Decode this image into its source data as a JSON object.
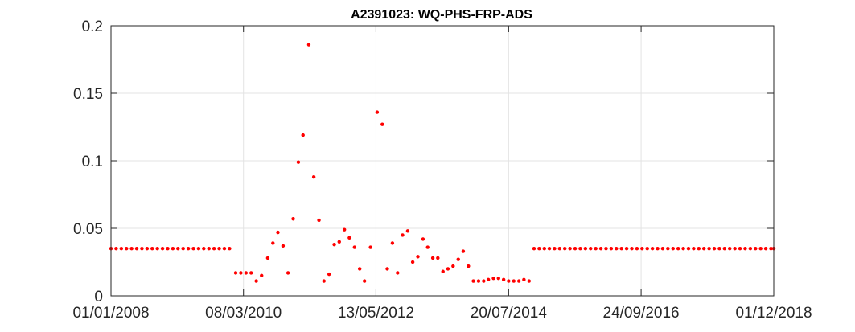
{
  "chart_data": {
    "type": "scatter",
    "title": "A2391023: WQ-PHS-FRP-ADS",
    "xlabel": "",
    "ylabel": "",
    "xlim": [
      "2008-01-01",
      "2018-12-01"
    ],
    "ylim": [
      0,
      0.2
    ],
    "x_ticks": [
      "2008-01-01",
      "2010-03-08",
      "2012-05-13",
      "2014-07-20",
      "2016-09-24",
      "2018-12-01"
    ],
    "x_tick_labels": [
      "01/01/2008",
      "08/03/2010",
      "13/05/2012",
      "20/07/2014",
      "24/09/2016",
      "01/12/2018"
    ],
    "y_ticks": [
      0,
      0.05,
      0.1,
      0.15,
      0.2
    ],
    "y_tick_labels": [
      "0",
      "0.05",
      "0.1",
      "0.15",
      "0.2"
    ],
    "grid": true,
    "marker_color": "#ff0000",
    "series": [
      {
        "points": [
          [
            "2008-01-01",
            0.035
          ],
          [
            "2008-02-01",
            0.035
          ],
          [
            "2008-03-03",
            0.035
          ],
          [
            "2008-04-03",
            0.035
          ],
          [
            "2008-05-04",
            0.035
          ],
          [
            "2008-06-04",
            0.035
          ],
          [
            "2008-07-05",
            0.035
          ],
          [
            "2008-08-05",
            0.035
          ],
          [
            "2008-09-05",
            0.035
          ],
          [
            "2008-10-06",
            0.035
          ],
          [
            "2008-11-06",
            0.035
          ],
          [
            "2008-12-07",
            0.035
          ],
          [
            "2009-01-07",
            0.035
          ],
          [
            "2009-02-07",
            0.035
          ],
          [
            "2009-03-10",
            0.035
          ],
          [
            "2009-04-10",
            0.035
          ],
          [
            "2009-05-11",
            0.035
          ],
          [
            "2009-06-11",
            0.035
          ],
          [
            "2009-07-12",
            0.035
          ],
          [
            "2009-08-12",
            0.035
          ],
          [
            "2009-09-12",
            0.035
          ],
          [
            "2009-10-13",
            0.035
          ],
          [
            "2009-11-13",
            0.035
          ],
          [
            "2009-12-14",
            0.035
          ],
          [
            "2010-01-20",
            0.017
          ],
          [
            "2010-02-20",
            0.017
          ],
          [
            "2010-03-23",
            0.017
          ],
          [
            "2010-04-23",
            0.017
          ],
          [
            "2010-05-24",
            0.011
          ],
          [
            "2010-06-25",
            0.015
          ],
          [
            "2010-08-01",
            0.028
          ],
          [
            "2010-09-01",
            0.039
          ],
          [
            "2010-10-01",
            0.047
          ],
          [
            "2010-11-01",
            0.037
          ],
          [
            "2010-12-01",
            0.017
          ],
          [
            "2011-01-01",
            0.057
          ],
          [
            "2011-02-01",
            0.099
          ],
          [
            "2011-03-01",
            0.119
          ],
          [
            "2011-04-05",
            0.186
          ],
          [
            "2011-05-05",
            0.088
          ],
          [
            "2011-06-05",
            0.056
          ],
          [
            "2011-07-05",
            0.011
          ],
          [
            "2011-08-05",
            0.016
          ],
          [
            "2011-09-05",
            0.038
          ],
          [
            "2011-10-05",
            0.04
          ],
          [
            "2011-11-05",
            0.049
          ],
          [
            "2011-12-05",
            0.043
          ],
          [
            "2012-01-05",
            0.036
          ],
          [
            "2012-02-05",
            0.02
          ],
          [
            "2012-03-05",
            0.011
          ],
          [
            "2012-04-10",
            0.036
          ],
          [
            "2012-05-20",
            0.136
          ],
          [
            "2012-06-20",
            0.127
          ],
          [
            "2012-07-20",
            0.02
          ],
          [
            "2012-08-20",
            0.039
          ],
          [
            "2012-09-20",
            0.017
          ],
          [
            "2012-10-20",
            0.045
          ],
          [
            "2012-11-20",
            0.048
          ],
          [
            "2012-12-20",
            0.025
          ],
          [
            "2013-01-20",
            0.029
          ],
          [
            "2013-02-20",
            0.042
          ],
          [
            "2013-03-20",
            0.036
          ],
          [
            "2013-04-20",
            0.028
          ],
          [
            "2013-05-20",
            0.028
          ],
          [
            "2013-06-20",
            0.018
          ],
          [
            "2013-07-20",
            0.02
          ],
          [
            "2013-08-20",
            0.022
          ],
          [
            "2013-09-20",
            0.027
          ],
          [
            "2013-10-20",
            0.033
          ],
          [
            "2013-11-20",
            0.022
          ],
          [
            "2013-12-20",
            0.011
          ],
          [
            "2014-01-20",
            0.011
          ],
          [
            "2014-02-20",
            0.011
          ],
          [
            "2014-03-20",
            0.012
          ],
          [
            "2014-04-20",
            0.013
          ],
          [
            "2014-05-20",
            0.013
          ],
          [
            "2014-06-20",
            0.012
          ],
          [
            "2014-07-20",
            0.011
          ],
          [
            "2014-08-20",
            0.011
          ],
          [
            "2014-09-20",
            0.011
          ],
          [
            "2014-10-20",
            0.012
          ],
          [
            "2014-11-20",
            0.011
          ],
          [
            "2014-12-20",
            0.035
          ],
          [
            "2015-01-20",
            0.035
          ],
          [
            "2015-02-20",
            0.035
          ],
          [
            "2015-03-22",
            0.035
          ],
          [
            "2015-04-22",
            0.035
          ],
          [
            "2015-05-23",
            0.035
          ],
          [
            "2015-06-23",
            0.035
          ],
          [
            "2015-07-24",
            0.035
          ],
          [
            "2015-08-24",
            0.035
          ],
          [
            "2015-09-24",
            0.035
          ],
          [
            "2015-10-25",
            0.035
          ],
          [
            "2015-11-25",
            0.035
          ],
          [
            "2015-12-26",
            0.035
          ],
          [
            "2016-01-26",
            0.035
          ],
          [
            "2016-02-26",
            0.035
          ],
          [
            "2016-03-28",
            0.035
          ],
          [
            "2016-04-28",
            0.035
          ],
          [
            "2016-05-29",
            0.035
          ],
          [
            "2016-06-29",
            0.035
          ],
          [
            "2016-07-30",
            0.035
          ],
          [
            "2016-08-30",
            0.035
          ],
          [
            "2016-09-30",
            0.035
          ],
          [
            "2016-10-31",
            0.035
          ],
          [
            "2016-12-01",
            0.035
          ],
          [
            "2017-01-01",
            0.035
          ],
          [
            "2017-02-01",
            0.035
          ],
          [
            "2017-03-04",
            0.035
          ],
          [
            "2017-04-04",
            0.035
          ],
          [
            "2017-05-05",
            0.035
          ],
          [
            "2017-06-05",
            0.035
          ],
          [
            "2017-07-06",
            0.035
          ],
          [
            "2017-08-06",
            0.035
          ],
          [
            "2017-09-06",
            0.035
          ],
          [
            "2017-10-07",
            0.035
          ],
          [
            "2017-11-07",
            0.035
          ],
          [
            "2017-12-08",
            0.035
          ],
          [
            "2018-01-08",
            0.035
          ],
          [
            "2018-02-08",
            0.035
          ],
          [
            "2018-03-11",
            0.035
          ],
          [
            "2018-04-11",
            0.035
          ],
          [
            "2018-05-12",
            0.035
          ],
          [
            "2018-06-12",
            0.035
          ],
          [
            "2018-07-13",
            0.035
          ],
          [
            "2018-08-13",
            0.035
          ],
          [
            "2018-09-13",
            0.035
          ],
          [
            "2018-10-14",
            0.035
          ],
          [
            "2018-11-14",
            0.035
          ],
          [
            "2018-12-01",
            0.035
          ]
        ]
      }
    ]
  }
}
